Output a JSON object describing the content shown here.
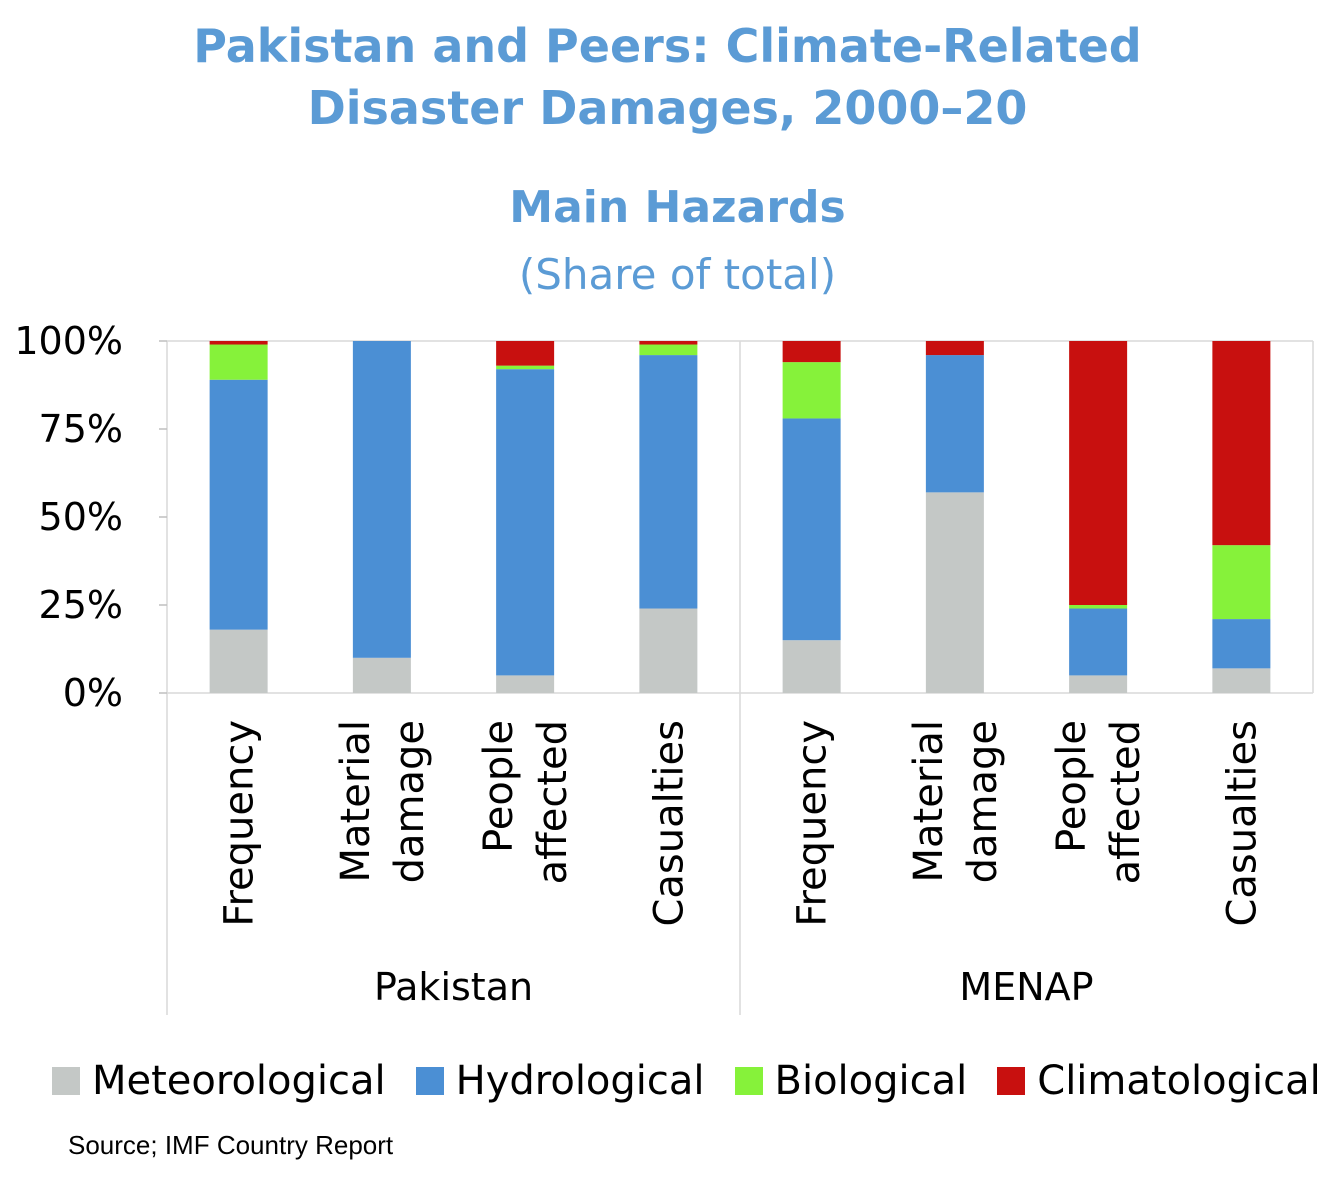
{
  "title_line1": "Pakistan and Peers: Climate-Related",
  "title_line2": "Disaster Damages, 2000–20",
  "subtitle": "Main Hazards",
  "unit": "(Share of total)",
  "source": "Source; IMF Country Report",
  "chart_data": {
    "type": "bar",
    "stacked": true,
    "groups": [
      {
        "name": "Pakistan",
        "categories": [
          [
            "Frequency"
          ],
          [
            "Material",
            "damage"
          ],
          [
            "People",
            "affected"
          ],
          [
            "Casualties"
          ]
        ]
      },
      {
        "name": "MENAP",
        "categories": [
          [
            "Frequency"
          ],
          [
            "Material",
            "damage"
          ],
          [
            "People",
            "affected"
          ],
          [
            "Casualties"
          ]
        ]
      }
    ],
    "series": [
      {
        "name": "Meteorological",
        "color": "#c4c8c6",
        "values": [
          18,
          10,
          5,
          24,
          15,
          57,
          5,
          7
        ]
      },
      {
        "name": "Hydrological",
        "color": "#4b8fd4",
        "values": [
          71,
          90,
          87,
          72,
          63,
          39,
          19,
          14
        ]
      },
      {
        "name": "Biological",
        "color": "#86f23a",
        "values": [
          10,
          0,
          1,
          3,
          16,
          0,
          1,
          21
        ]
      },
      {
        "name": "Climatological",
        "color": "#c8100f",
        "values": [
          1,
          0,
          7,
          1,
          6,
          4,
          75,
          58
        ]
      }
    ],
    "yticks": [
      "0%",
      "25%",
      "50%",
      "75%",
      "100%"
    ],
    "ylim": [
      0,
      100
    ],
    "grid": false,
    "legend_position": "bottom"
  }
}
